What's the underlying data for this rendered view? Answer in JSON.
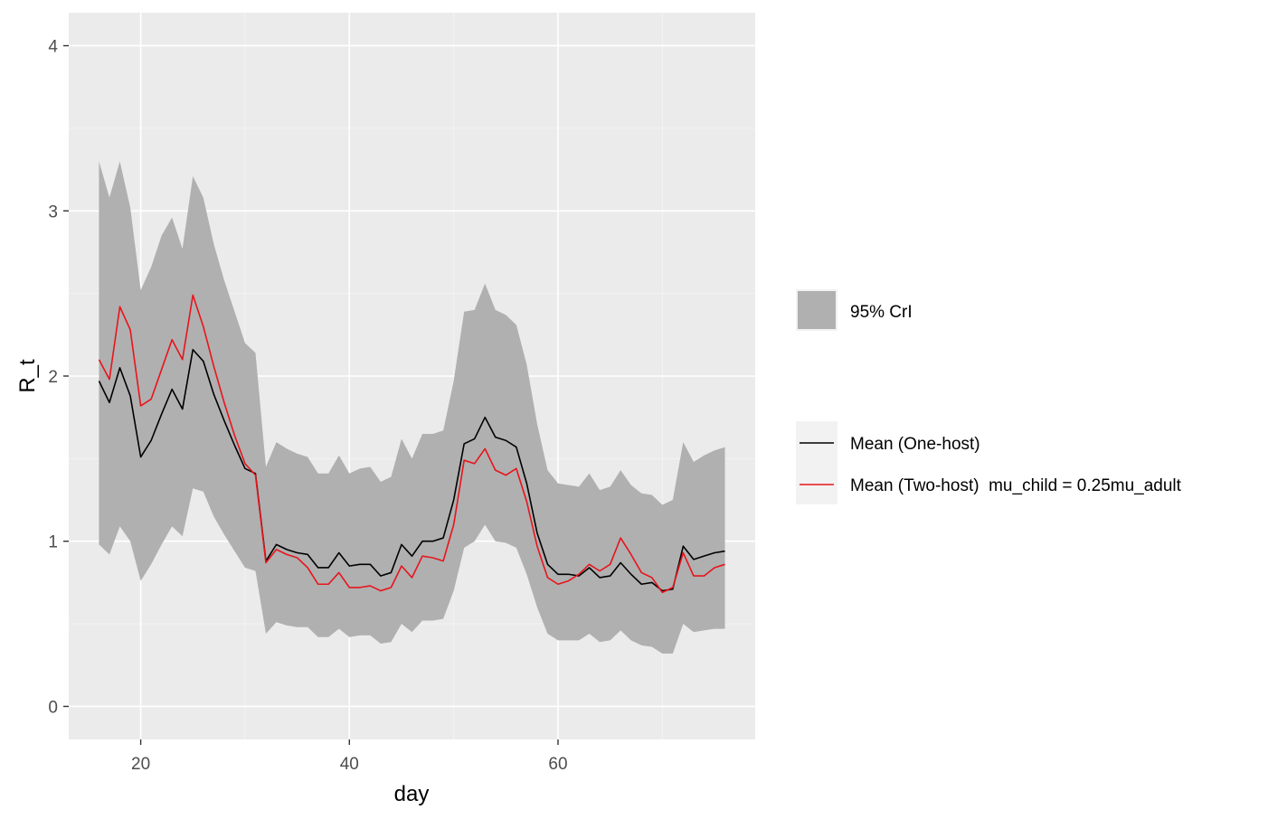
{
  "chart_data": {
    "type": "line",
    "xlabel": "day",
    "ylabel": "R_t",
    "xlim": [
      13.1,
      78.9
    ],
    "ylim": [
      -0.2,
      4.2
    ],
    "xticks": [
      20,
      40,
      60
    ],
    "xtick_labels": [
      "20",
      "40",
      "60"
    ],
    "xminor": [
      30,
      50,
      70
    ],
    "yticks": [
      0,
      1,
      2,
      3,
      4
    ],
    "ytick_labels": [
      "0",
      "1",
      "2",
      "3",
      "4"
    ],
    "yminor": [
      0.5,
      1.5,
      2.5,
      3.5
    ],
    "grid": true,
    "legend_position": "right",
    "ribbon": {
      "name": "95% CrI",
      "color": "#b0b0b0",
      "x": [
        16,
        17,
        18,
        19,
        20,
        21,
        22,
        23,
        24,
        25,
        26,
        27,
        28,
        29,
        30,
        31,
        32,
        33,
        34,
        35,
        36,
        37,
        38,
        39,
        40,
        41,
        42,
        43,
        44,
        45,
        46,
        47,
        48,
        49,
        50,
        51,
        52,
        53,
        54,
        55,
        56,
        57,
        58,
        59,
        60,
        61,
        62,
        63,
        64,
        65,
        66,
        67,
        68,
        69,
        70,
        71,
        72,
        73,
        74,
        75,
        76
      ],
      "lower": [
        0.98,
        0.92,
        1.09,
        1.0,
        0.76,
        0.86,
        0.98,
        1.09,
        1.03,
        1.32,
        1.3,
        1.15,
        1.04,
        0.94,
        0.84,
        0.82,
        0.44,
        0.51,
        0.49,
        0.48,
        0.48,
        0.42,
        0.42,
        0.47,
        0.42,
        0.43,
        0.43,
        0.38,
        0.39,
        0.5,
        0.45,
        0.52,
        0.52,
        0.53,
        0.7,
        0.96,
        1.0,
        1.1,
        1.0,
        0.99,
        0.96,
        0.8,
        0.6,
        0.44,
        0.4,
        0.4,
        0.4,
        0.44,
        0.39,
        0.4,
        0.46,
        0.4,
        0.37,
        0.36,
        0.32,
        0.32,
        0.5,
        0.45,
        0.46,
        0.47,
        0.47
      ],
      "upper": [
        3.3,
        3.08,
        3.3,
        3.02,
        2.52,
        2.66,
        2.85,
        2.96,
        2.77,
        3.21,
        3.08,
        2.8,
        2.58,
        2.39,
        2.2,
        2.14,
        1.45,
        1.6,
        1.56,
        1.53,
        1.51,
        1.41,
        1.41,
        1.52,
        1.41,
        1.44,
        1.45,
        1.36,
        1.39,
        1.62,
        1.5,
        1.65,
        1.65,
        1.67,
        1.97,
        2.39,
        2.4,
        2.56,
        2.4,
        2.37,
        2.31,
        2.07,
        1.71,
        1.43,
        1.35,
        1.34,
        1.33,
        1.41,
        1.31,
        1.33,
        1.43,
        1.34,
        1.29,
        1.28,
        1.22,
        1.25,
        1.6,
        1.48,
        1.52,
        1.55,
        1.57
      ]
    },
    "series": [
      {
        "name": "Mean (One-host)",
        "color": "#000000",
        "x": [
          16,
          17,
          18,
          19,
          20,
          21,
          22,
          23,
          24,
          25,
          26,
          27,
          28,
          29,
          30,
          31,
          32,
          33,
          34,
          35,
          36,
          37,
          38,
          39,
          40,
          41,
          42,
          43,
          44,
          45,
          46,
          47,
          48,
          49,
          50,
          51,
          52,
          53,
          54,
          55,
          56,
          57,
          58,
          59,
          60,
          61,
          62,
          63,
          64,
          65,
          66,
          67,
          68,
          69,
          70,
          71,
          72,
          73,
          74,
          75,
          76
        ],
        "values": [
          1.97,
          1.84,
          2.05,
          1.88,
          1.51,
          1.61,
          1.77,
          1.92,
          1.8,
          2.16,
          2.09,
          1.89,
          1.73,
          1.58,
          1.44,
          1.41,
          0.88,
          0.98,
          0.95,
          0.93,
          0.92,
          0.84,
          0.84,
          0.93,
          0.85,
          0.86,
          0.86,
          0.79,
          0.81,
          0.98,
          0.91,
          1.0,
          1.0,
          1.02,
          1.25,
          1.59,
          1.62,
          1.75,
          1.63,
          1.61,
          1.57,
          1.35,
          1.05,
          0.86,
          0.8,
          0.8,
          0.79,
          0.84,
          0.78,
          0.79,
          0.87,
          0.8,
          0.74,
          0.75,
          0.7,
          0.71,
          0.97,
          0.89,
          0.91,
          0.93,
          0.94
        ]
      },
      {
        "name": "Mean (Two-host)  mu_child = 0.25mu_adult",
        "color": "#e8141c",
        "x": [
          16,
          17,
          18,
          19,
          20,
          21,
          22,
          23,
          24,
          25,
          26,
          27,
          28,
          29,
          30,
          31,
          32,
          33,
          34,
          35,
          36,
          37,
          38,
          39,
          40,
          41,
          42,
          43,
          44,
          45,
          46,
          47,
          48,
          49,
          50,
          51,
          52,
          53,
          54,
          55,
          56,
          57,
          58,
          59,
          60,
          61,
          62,
          63,
          64,
          65,
          66,
          67,
          68,
          69,
          70,
          71,
          72,
          73,
          74,
          75,
          76
        ],
        "values": [
          2.1,
          1.98,
          2.42,
          2.28,
          1.82,
          1.86,
          2.04,
          2.22,
          2.1,
          2.49,
          2.3,
          2.06,
          1.84,
          1.64,
          1.47,
          1.4,
          0.87,
          0.95,
          0.92,
          0.9,
          0.84,
          0.74,
          0.74,
          0.81,
          0.72,
          0.72,
          0.73,
          0.7,
          0.72,
          0.85,
          0.78,
          0.91,
          0.9,
          0.88,
          1.1,
          1.49,
          1.47,
          1.56,
          1.43,
          1.4,
          1.44,
          1.24,
          0.97,
          0.78,
          0.74,
          0.76,
          0.8,
          0.86,
          0.82,
          0.86,
          1.02,
          0.92,
          0.81,
          0.78,
          0.69,
          0.72,
          0.93,
          0.79,
          0.79,
          0.84,
          0.86
        ]
      }
    ]
  }
}
